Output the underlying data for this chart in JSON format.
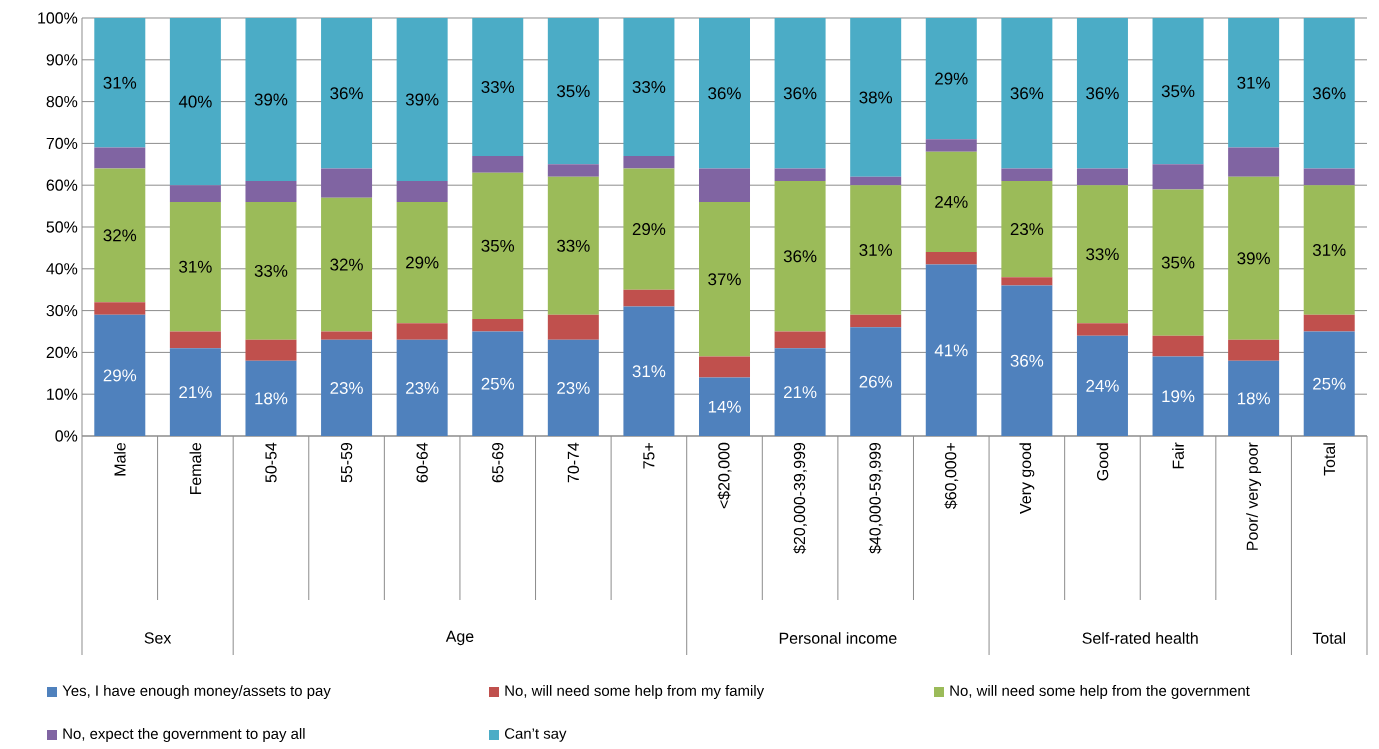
{
  "chart_data": {
    "type": "bar",
    "stacked": true,
    "categories": [
      "Male",
      "Female",
      "50-54",
      "55-59",
      "60-64",
      "65-69",
      "70-74",
      "75+",
      "<$20,000",
      "$20,000-39,999",
      "$40,000-59,999",
      "$60,000+",
      "Very good",
      "Good",
      "Fair",
      "Poor/ very poor",
      "Total"
    ],
    "series": [
      {
        "name": "Yes, I have enough money/assets to pay",
        "color": "#4f81bd",
        "values": [
          29,
          21,
          18,
          23,
          23,
          25,
          23,
          31,
          14,
          21,
          26,
          41,
          36,
          24,
          19,
          18,
          25
        ],
        "value_labels": [
          "29%",
          "21%",
          "18%",
          "23%",
          "23%",
          "25%",
          "23%",
          "31%",
          "14%",
          "21%",
          "26%",
          "41%",
          "36%",
          "24%",
          "19%",
          "18%",
          "25%"
        ]
      },
      {
        "name": "No, will need some help from my family",
        "color": "#c0504d",
        "values": [
          3,
          4,
          5,
          2,
          4,
          3,
          6,
          4,
          5,
          4,
          3,
          3,
          2,
          3,
          5,
          5,
          4
        ]
      },
      {
        "name": "No, will need some help from the government",
        "color": "#9bbb59",
        "values": [
          32,
          31,
          33,
          32,
          29,
          35,
          33,
          29,
          37,
          36,
          31,
          24,
          23,
          33,
          35,
          39,
          31
        ],
        "value_labels": [
          "32%",
          "31%",
          "33%",
          "32%",
          "29%",
          "35%",
          "33%",
          "29%",
          "37%",
          "36%",
          "31%",
          "24%",
          "23%",
          "33%",
          "35%",
          "39%",
          "31%"
        ]
      },
      {
        "name": "No, expect the government to pay all",
        "color": "#8064a2",
        "values": [
          5,
          4,
          5,
          7,
          5,
          4,
          3,
          3,
          8,
          3,
          2,
          3,
          3,
          4,
          6,
          7,
          4
        ]
      },
      {
        "name": "Can’t say",
        "color": "#4bacc6",
        "values": [
          31,
          40,
          39,
          36,
          39,
          33,
          35,
          33,
          36,
          36,
          38,
          29,
          36,
          36,
          35,
          31,
          36
        ],
        "value_labels": [
          "31%",
          "40%",
          "39%",
          "36%",
          "39%",
          "33%",
          "35%",
          "33%",
          "36%",
          "36%",
          "38%",
          "29%",
          "36%",
          "36%",
          "35%",
          "31%",
          "36%"
        ]
      }
    ],
    "ylim": [
      0,
      100
    ],
    "yticks": [
      {
        "value": 0,
        "label": "0%"
      },
      {
        "value": 10,
        "label": "10%"
      },
      {
        "value": 20,
        "label": "20%"
      },
      {
        "value": 30,
        "label": "30%"
      },
      {
        "value": 40,
        "label": "40%"
      },
      {
        "value": 50,
        "label": "50%"
      },
      {
        "value": 60,
        "label": "60%"
      },
      {
        "value": 70,
        "label": "70%"
      },
      {
        "value": 80,
        "label": "80%"
      },
      {
        "value": 90,
        "label": "90%"
      },
      {
        "value": 100,
        "label": "100%"
      }
    ],
    "grid": "y",
    "legend": "bottom",
    "annotations": [
      "Sex",
      "Age",
      "Personal income",
      "Self-rated health",
      "Total"
    ]
  }
}
